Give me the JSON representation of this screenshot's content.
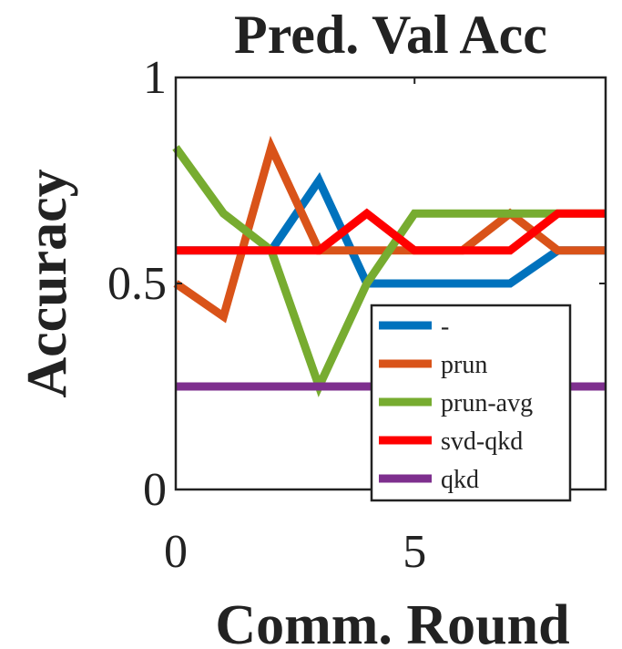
{
  "chart_data": {
    "type": "line",
    "title": "Pred. Val Acc",
    "xlabel": "Comm. Round",
    "ylabel": "Accuracy",
    "xlim": [
      0,
      9
    ],
    "ylim": [
      0,
      1
    ],
    "xticks": [
      0,
      5
    ],
    "yticks": [
      0,
      0.5,
      1
    ],
    "xtick_labels": [
      "0",
      "5"
    ],
    "ytick_labels": [
      "0",
      "0.5",
      "1"
    ],
    "grid": false,
    "legend_position": "bottom-right",
    "x": [
      0,
      1,
      2,
      3,
      4,
      5,
      6,
      7,
      8,
      9
    ],
    "series": [
      {
        "name": "-",
        "color": "#0072BD",
        "values": [
          0.58,
          0.58,
          0.58,
          0.75,
          0.5,
          0.5,
          0.5,
          0.5,
          0.58,
          0.58
        ]
      },
      {
        "name": "prun",
        "color": "#D95319",
        "values": [
          0.5,
          0.42,
          0.83,
          0.58,
          0.58,
          0.58,
          0.58,
          0.67,
          0.58,
          0.58
        ]
      },
      {
        "name": "prun-avg",
        "color": "#77AC30",
        "values": [
          0.83,
          0.67,
          0.58,
          0.25,
          0.5,
          0.67,
          0.67,
          0.67,
          0.67,
          0.67
        ]
      },
      {
        "name": "svd-qkd",
        "color": "#FF0000",
        "values": [
          0.58,
          0.58,
          0.58,
          0.58,
          0.67,
          0.58,
          0.58,
          0.58,
          0.67,
          0.67
        ]
      },
      {
        "name": "qkd",
        "color": "#7E2F8E",
        "values": [
          0.25,
          0.25,
          0.25,
          0.25,
          0.25,
          0.25,
          0.25,
          0.25,
          0.25,
          0.25
        ]
      }
    ]
  }
}
